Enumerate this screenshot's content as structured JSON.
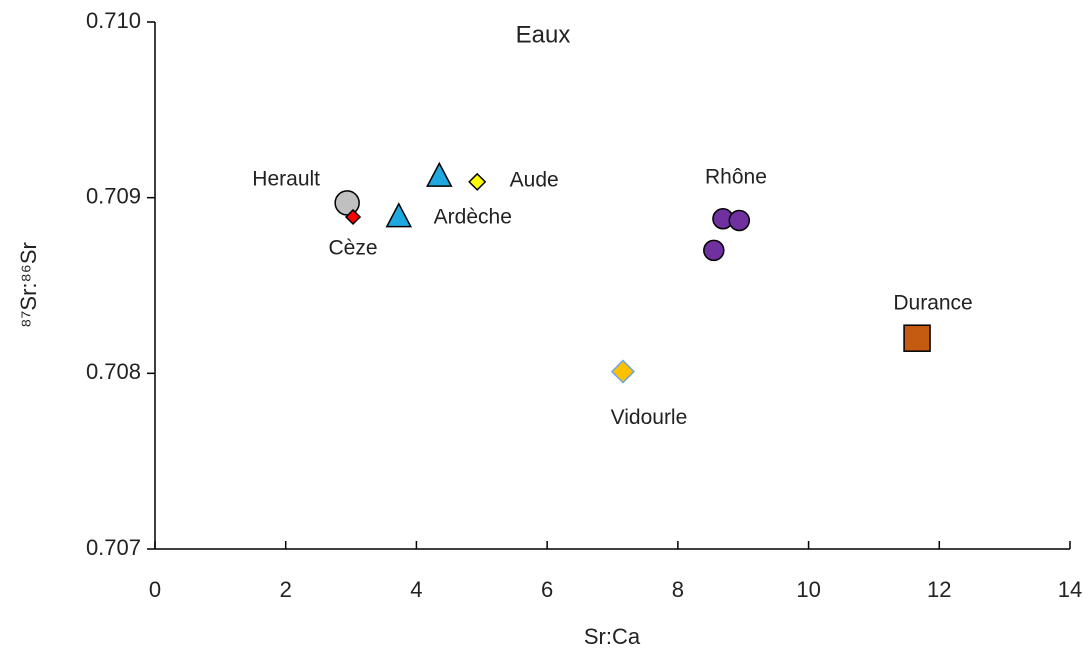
{
  "chart_data": {
    "type": "scatter",
    "title": "Eaux",
    "x_label": "Sr:Ca",
    "y_label": "⁸⁷Sr:⁸⁶Sr",
    "xlim": [
      0,
      14
    ],
    "xticks": [
      0,
      2,
      4,
      6,
      8,
      10,
      12,
      14
    ],
    "ylim": [
      0.707,
      0.71
    ],
    "yticks": [
      {
        "value": 0.707,
        "label": "0.707"
      },
      {
        "value": 0.708,
        "label": "0.708"
      },
      {
        "value": 0.709,
        "label": "0.709"
      },
      {
        "value": 0.71,
        "label": "0.710"
      }
    ],
    "grid": false,
    "series": [
      {
        "name": "Herault",
        "color": "#c0c0c0",
        "marker": "circle",
        "x": [
          2.94
        ],
        "values": [
          0.70897
        ]
      },
      {
        "name": "Cèze",
        "color": "#ff0000",
        "marker": "diamond",
        "x": [
          3.03
        ],
        "values": [
          0.70889
        ]
      },
      {
        "name": "Ardèche",
        "color": "#1fa7e0",
        "marker": "triangle",
        "x": [
          3.73,
          4.35
        ],
        "values": [
          0.70889,
          0.70912
        ]
      },
      {
        "name": "Aude",
        "color": "#ffff00",
        "marker": "diamond",
        "x": [
          4.93
        ],
        "values": [
          0.70909
        ]
      },
      {
        "name": "Rhône",
        "color": "#7030a0",
        "marker": "circle",
        "x": [
          8.69,
          8.94,
          8.55
        ],
        "values": [
          0.70888,
          0.70887,
          0.7087
        ]
      },
      {
        "name": "Vidourle",
        "color": "#ffc000",
        "marker": "diamond",
        "x": [
          7.16
        ],
        "values": [
          0.70801
        ]
      },
      {
        "name": "Durance",
        "color": "#c55a11",
        "marker": "square",
        "x": [
          11.66
        ],
        "values": [
          0.7082
        ]
      }
    ]
  }
}
